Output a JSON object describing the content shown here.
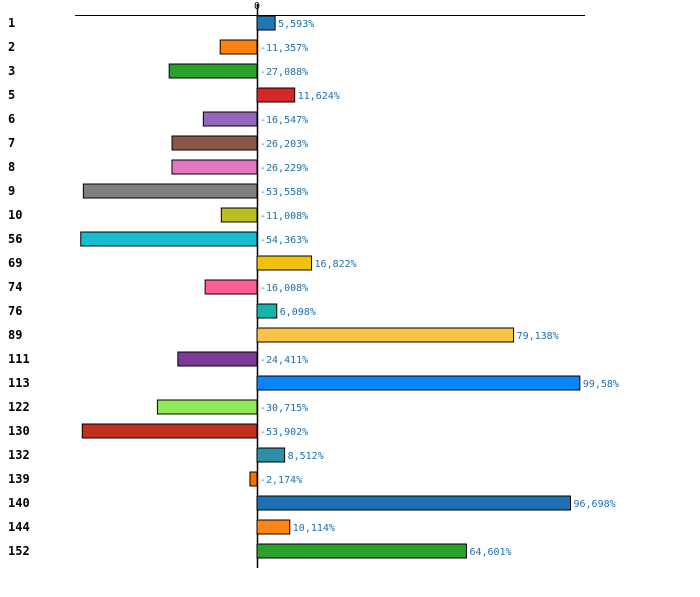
{
  "chart_data": {
    "type": "bar",
    "orientation": "horizontal",
    "title": "",
    "xlabel": "",
    "ylabel": "",
    "zero_tick_label": "0",
    "xlim": [
      -56,
      101
    ],
    "value_suffix": "%",
    "decimal_separator": ",",
    "categories": [
      "1",
      "2",
      "3",
      "5",
      "6",
      "7",
      "8",
      "9",
      "10",
      "56",
      "69",
      "74",
      "76",
      "89",
      "111",
      "113",
      "122",
      "130",
      "132",
      "139",
      "140",
      "144",
      "152"
    ],
    "values": [
      5.593,
      -11.357,
      -27.088,
      11.624,
      -16.547,
      -26.203,
      -26.229,
      -53.558,
      -11.008,
      -54.363,
      16.822,
      -16.008,
      6.098,
      79.138,
      -24.411,
      99.58,
      -30.715,
      -53.902,
      8.512,
      -2.174,
      96.698,
      10.114,
      64.601
    ],
    "value_labels": [
      "5,593%",
      "-11,357%",
      "-27,088%",
      "11,624%",
      "-16,547%",
      "-26,203%",
      "-26,229%",
      "-53,558%",
      "-11,008%",
      "-54,363%",
      "16,822%",
      "-16,008%",
      "6,098%",
      "79,138%",
      "-24,411%",
      "99,58%",
      "-30,715%",
      "-53,902%",
      "8,512%",
      "-2,174%",
      "96,698%",
      "10,114%",
      "64,601%"
    ],
    "colors": [
      "#1f77b4",
      "#ff7f0e",
      "#2ca02c",
      "#d62728",
      "#9467bd",
      "#8c564b",
      "#e377c2",
      "#7f7f7f",
      "#bcbd22",
      "#17becf",
      "#f0c20e",
      "#ff5c94",
      "#16b3a8",
      "#fbc248",
      "#7b3a96",
      "#0a84ff",
      "#90e958",
      "#c1301f",
      "#2f8fa6",
      "#ff6f00",
      "#1f6fb4",
      "#ff8515",
      "#2ca02c"
    ]
  }
}
